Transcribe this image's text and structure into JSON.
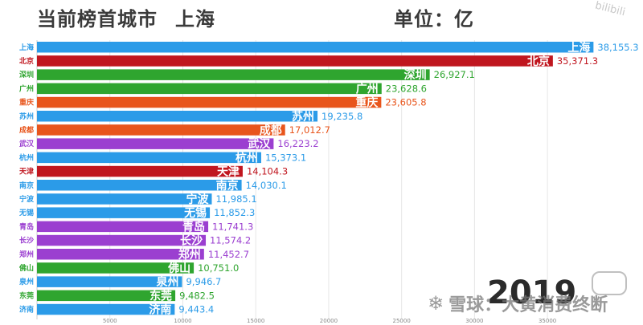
{
  "header": {
    "title": "当前榜首城市",
    "leader_city": "上海",
    "unit_label": "单位：亿",
    "corner_logo": "bilibili"
  },
  "year": "2019",
  "watermark": "雪球：大黄消费终断",
  "colors": {
    "blue": "#2b9be8",
    "red": "#c0161f",
    "green": "#2fa52f",
    "orange": "#e8551c",
    "purple": "#9b3fd0"
  },
  "chart_data": {
    "type": "bar",
    "orientation": "horizontal",
    "title": "当前榜首城市 上海",
    "unit": "单位：亿",
    "categories": [
      "上海",
      "北京",
      "深圳",
      "广州",
      "重庆",
      "苏州",
      "成都",
      "武汉",
      "杭州",
      "天津",
      "南京",
      "宁波",
      "无锡",
      "青岛",
      "长沙",
      "郑州",
      "佛山",
      "泉州",
      "东莞",
      "济南"
    ],
    "values": [
      38155.3,
      35371.3,
      26927.1,
      23628.6,
      23605.8,
      19235.8,
      17012.7,
      16223.2,
      15373.1,
      14104.3,
      14030.1,
      11985.1,
      11852.3,
      11741.3,
      11574.2,
      11452.7,
      10751.0,
      9946.7,
      9482.5,
      9443.4
    ],
    "value_labels": [
      "38,155.3",
      "35,371.3",
      "26,927.1",
      "23,628.6",
      "23,605.8",
      "19,235.8",
      "17,012.7",
      "16,223.2",
      "15,373.1",
      "14,104.3",
      "14,030.1",
      "11,985.1",
      "11,852.3",
      "11,741.3",
      "11,574.2",
      "11,452.7",
      "10,751.0",
      "9,946.7",
      "9,482.5",
      "9,443.4"
    ],
    "bar_colors": [
      "blue",
      "red",
      "green",
      "green",
      "orange",
      "blue",
      "orange",
      "purple",
      "blue",
      "red",
      "blue",
      "blue",
      "blue",
      "purple",
      "purple",
      "purple",
      "green",
      "blue",
      "green",
      "blue"
    ],
    "x_ticks": [
      5000,
      10000,
      15000,
      20000,
      25000,
      30000,
      35000
    ],
    "x_tick_labels": [
      "5000",
      "10000",
      "15000",
      "20000",
      "25000",
      "30000",
      "35000"
    ],
    "xlim": [
      0,
      41000
    ],
    "grid": true,
    "legend": "none"
  }
}
